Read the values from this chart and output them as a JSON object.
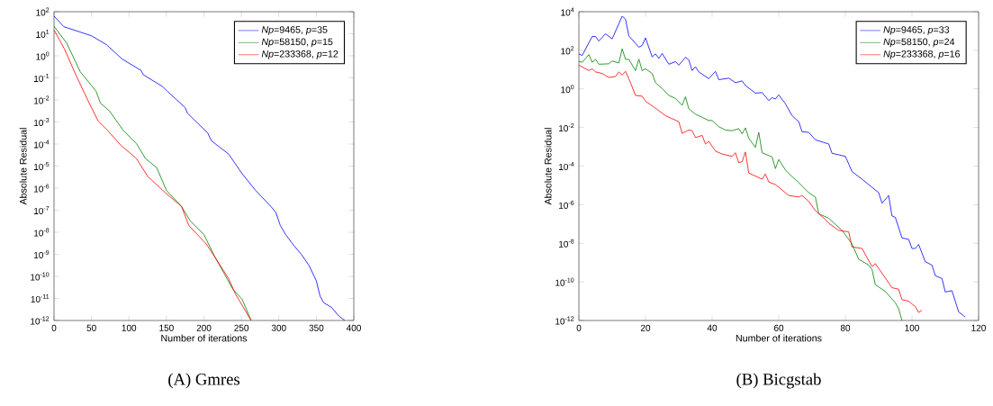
{
  "chart_data": [
    {
      "type": "line",
      "title": "(A) Gmres",
      "xlabel": "Number of iterations",
      "ylabel": "Absolute Residual",
      "log": "y",
      "legend": "top right",
      "grid": false,
      "xlim": [
        0,
        400
      ],
      "ylim": [
        1e-12,
        100
      ],
      "xticks": [
        0,
        50,
        100,
        150,
        200,
        250,
        300,
        350,
        400
      ],
      "yticks": [
        {
          "value": 1e-12,
          "label": "10$^{-12}$"
        },
        {
          "value": 1e-11,
          "label": "10$^{-11}$"
        },
        {
          "value": 1e-10,
          "label": "10$^{-10}$"
        },
        {
          "value": 1e-09,
          "label": "10$^{-9}$"
        },
        {
          "value": 1e-08,
          "label": "10$^{-8}$"
        },
        {
          "value": 1e-07,
          "label": "10$^{-7}$"
        },
        {
          "value": 1e-06,
          "label": "10$^{-6}$"
        },
        {
          "value": 1e-05,
          "label": "10$^{-5}$"
        },
        {
          "value": 0.0001,
          "label": "10$^{-4}$"
        },
        {
          "value": 0.001,
          "label": "10$^{-3}$"
        },
        {
          "value": 0.01,
          "label": "10$^{-2}$"
        },
        {
          "value": 0.1,
          "label": "10$^{-1}$"
        },
        {
          "value": 1,
          "label": "10$^{0}$"
        },
        {
          "value": 10,
          "label": "10$^{1}$"
        },
        {
          "value": 100,
          "label": "10$^{2}$"
        }
      ],
      "series": [
        {
          "name": "*Np*=9465, *p*=35",
          "color": "#0000ff",
          "x": [
            0,
            13,
            50,
            70,
            91,
            116,
            119,
            145,
            151,
            175,
            178,
            205,
            210,
            233,
            251,
            269,
            290,
            296,
            302,
            309,
            320,
            330,
            340,
            350,
            355,
            360,
            370,
            380,
            388
          ],
          "values": [
            63,
            21,
            8.1,
            3.2,
            0.71,
            0.22,
            0.14,
            0.04,
            0.025,
            0.0045,
            0.0025,
            0.00032,
            0.00014,
            3.5e-05,
            4.5e-06,
            7.9e-07,
            1.4e-07,
            7.9e-08,
            2e-08,
            7.9e-09,
            2.5e-09,
            1e-09,
            3.2e-10,
            6.3e-11,
            1.26e-11,
            6.3e-12,
            4e-12,
            1.6e-12,
            1e-12
          ]
        },
        {
          "name": "*Np*=58150, *p*=15",
          "color": "#008000",
          "x": [
            0,
            17,
            35,
            56,
            62,
            74,
            92,
            110,
            122,
            137,
            150,
            170,
            182,
            200,
            215,
            239,
            251,
            263
          ],
          "values": [
            22,
            3.7,
            0.19,
            0.025,
            0.0071,
            0.0032,
            0.00043,
            0.000105,
            2.2e-05,
            8.5e-06,
            7.9e-07,
            1.5e-07,
            3.2e-08,
            7.9e-09,
            7.2e-10,
            2.5e-11,
            9.1e-12,
            1e-12
          ]
        },
        {
          "name": "*Np*=233368, *p*=12",
          "color": "#ff0000",
          "x": [
            0,
            14,
            29,
            47,
            59,
            71,
            89,
            110,
            125,
            149,
            170,
            180,
            203,
            215,
            233,
            242,
            263
          ],
          "values": [
            15,
            2.0,
            0.14,
            0.0071,
            0.0011,
            0.00043,
            8.9e-05,
            2.2e-05,
            3.4e-06,
            6e-07,
            1.5e-07,
            2e-08,
            3e-09,
            7.2e-10,
            7.9e-11,
            1.6e-11,
            1e-12
          ]
        }
      ]
    },
    {
      "type": "line",
      "title": "(B) Bicgstab",
      "xlabel": "Number of iterations",
      "ylabel": "Absolute Residual",
      "log": "y",
      "legend": "top right",
      "grid": false,
      "xlim": [
        0,
        120
      ],
      "ylim": [
        1e-12,
        10000
      ],
      "xticks": [
        0,
        20,
        40,
        60,
        80,
        100,
        120
      ],
      "yticks": [
        {
          "value": 1e-12,
          "label": "10$^{-12}$"
        },
        {
          "value": 1e-10,
          "label": "10$^{-10}$"
        },
        {
          "value": 1e-08,
          "label": "10$^{-8}$"
        },
        {
          "value": 1e-06,
          "label": "10$^{-6}$"
        },
        {
          "value": 0.0001,
          "label": "10$^{-4}$"
        },
        {
          "value": 0.01,
          "label": "10$^{-2}$"
        },
        {
          "value": 1,
          "label": "10$^{0}$"
        },
        {
          "value": 100,
          "label": "10$^{2}$"
        },
        {
          "value": 10000,
          "label": "10$^{4}$"
        }
      ],
      "series": [
        {
          "name": "*Np*=9465, *p*=33",
          "color": "#0000ff",
          "x": [
            0,
            1,
            4,
            5,
            6,
            8,
            10,
            13,
            14,
            15,
            18,
            19,
            20,
            22,
            23,
            24,
            25,
            27,
            29,
            30,
            32,
            33,
            34,
            35,
            36,
            39,
            41,
            42,
            45,
            47,
            49,
            50,
            53,
            55,
            57,
            58,
            59,
            60,
            62,
            64,
            66,
            67,
            69,
            71,
            75,
            76,
            80,
            81,
            82,
            85,
            90,
            91,
            93,
            94,
            95,
            97,
            99,
            100,
            101,
            102,
            104,
            106,
            107,
            109,
            110,
            112,
            114,
            116
          ],
          "values": [
            65,
            54,
            520,
            520,
            300,
            720,
            390,
            5900,
            4100,
            560,
            145,
            180,
            440,
            46,
            65,
            38,
            69,
            19,
            26,
            17,
            43,
            32,
            8.9,
            14,
            7.6,
            3.4,
            8.1,
            3.0,
            3.6,
            2.1,
            2.6,
            1.5,
            0.6,
            0.65,
            0.25,
            0.35,
            0.3,
            0.49,
            0.17,
            0.041,
            0.02,
            0.006,
            0.0056,
            0.0023,
            0.0014,
            0.00046,
            0.00032,
            0.00013,
            5.2e-05,
            2.1e-05,
            4.2e-06,
            1.2e-06,
            3e-06,
            2.6e-07,
            2.2e-07,
            1.9e-08,
            1.6e-08,
            5.4e-09,
            5.4e-09,
            8.7e-09,
            1.1e-09,
            7.4e-10,
            2.1e-10,
            1.5e-10,
            3e-11,
            3.5e-11,
            2.8e-12,
            1.5e-12
          ]
        },
        {
          "name": "*Np*=58150, *p*=24",
          "color": "#008000",
          "x": [
            0,
            1,
            3,
            4,
            5,
            6,
            9,
            10,
            12,
            13,
            14,
            15,
            17,
            18,
            19,
            20,
            22,
            23,
            25,
            27,
            29,
            31,
            32,
            33,
            35,
            39,
            40,
            42,
            44,
            46,
            48,
            49,
            50,
            51,
            53,
            54,
            55,
            58,
            59,
            60,
            62,
            63,
            66,
            69,
            71,
            72,
            75,
            79,
            82,
            84,
            87,
            88,
            89,
            92,
            95,
            96,
            97
          ],
          "values": [
            26,
            24,
            60,
            24,
            34,
            19,
            20,
            28,
            22,
            120,
            34,
            34,
            8.9,
            35,
            8.9,
            11,
            6.3,
            2.1,
            1.05,
            0.46,
            0.32,
            0.14,
            0.39,
            0.093,
            0.049,
            0.023,
            0.023,
            0.011,
            0.0074,
            0.0068,
            0.0087,
            0.0047,
            0.0095,
            0.0028,
            0.00093,
            0.0056,
            0.00049,
            0.0003,
            7.4e-05,
            0.00022,
            6.3e-05,
            4.1e-05,
            1.4e-05,
            4.2e-06,
            2.5e-06,
            3.4e-07,
            2e-07,
            4.7e-08,
            9.3e-09,
            1.5e-09,
            7.4e-10,
            4.4e-10,
            7.2e-11,
            3.2e-11,
            8.3e-12,
            4.1e-12,
            1e-12
          ]
        },
        {
          "name": "*Np*=233368, *p*=16",
          "color": "#ff0000",
          "x": [
            0,
            3,
            4,
            5,
            7,
            9,
            11,
            12,
            13,
            14,
            15,
            17,
            19,
            20,
            23,
            26,
            30,
            31,
            33,
            34,
            35,
            37,
            38,
            39,
            41,
            43,
            46,
            47,
            48,
            49,
            50,
            51,
            55,
            56,
            57,
            59,
            60,
            63,
            66,
            67,
            69,
            71,
            74,
            75,
            78,
            81,
            82,
            85,
            88,
            89,
            94,
            96,
            97,
            99,
            101,
            102,
            103
          ],
          "values": [
            17,
            8.9,
            11,
            7.6,
            6.3,
            3.9,
            4.4,
            7.6,
            5.2,
            8.1,
            3.4,
            0.46,
            0.42,
            0.23,
            0.1,
            0.041,
            0.02,
            0.005,
            0.0074,
            0.0068,
            0.003,
            0.0039,
            0.0014,
            0.0019,
            0.0006,
            0.00042,
            0.00032,
            0.00049,
            0.00015,
            0.00017,
            0.00054,
            4.4e-05,
            2.1e-05,
            3.9e-05,
            1.5e-05,
            1.1e-05,
            8.1e-06,
            3e-06,
            2.5e-06,
            3e-06,
            1.5e-06,
            4.9e-07,
            1.7e-07,
            1.1e-07,
            4.7e-08,
            3.9e-08,
            6.5e-09,
            5.4e-09,
            6.3e-10,
            8.9e-10,
            5e-11,
            4.2e-11,
            1.2e-11,
            1e-11,
            5.2e-12,
            2.6e-12,
            3.4e-12
          ]
        }
      ]
    }
  ]
}
